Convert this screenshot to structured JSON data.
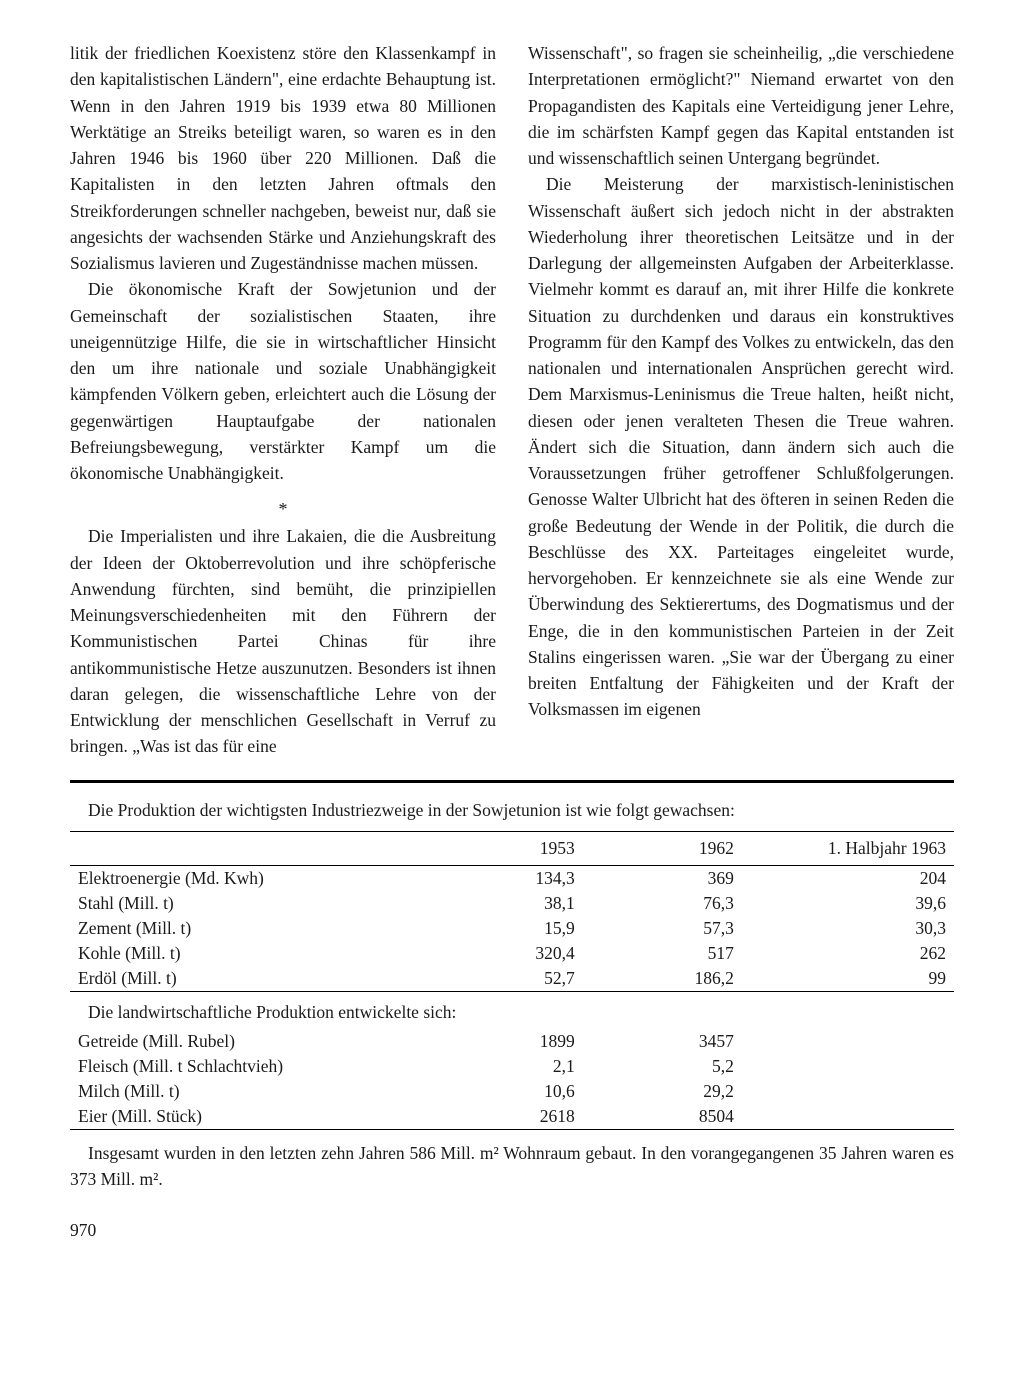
{
  "left_col": {
    "p1": "litik der friedlichen Koexistenz störe den Klassenkampf in den kapitalistischen Ländern\", eine erdachte Behauptung ist. Wenn in den Jahren 1919 bis 1939 etwa 80 Millionen Werktätige an Streiks beteiligt waren, so waren es in den Jahren 1946 bis 1960 über 220 Millionen. Daß die Kapitalisten in den letzten Jahren oftmals den Streikforderungen schneller nachgeben, beweist nur, daß sie angesichts der wachsenden Stärke und Anziehungskraft des Sozialismus lavieren und Zugeständnisse machen müssen.",
    "p2": "Die ökonomische Kraft der Sowjetunion und der Gemeinschaft der sozialistischen Staaten, ihre uneigennützige Hilfe, die sie in wirtschaftlicher Hinsicht den um ihre nationale und soziale Unabhängigkeit kämpfenden Völkern geben, erleichtert auch die Lösung der gegenwärtigen Hauptaufgabe der nationalen Befreiungsbewegung, verstärkter Kampf um die ökonomische Unabhängigkeit.",
    "sep": "*",
    "p3": "Die Imperialisten und ihre Lakaien, die die Ausbreitung der Ideen der Oktoberrevolution und ihre schöpferische Anwendung fürchten, sind bemüht, die prinzipiellen Meinungsverschiedenheiten mit den Führern der Kommunistischen Partei Chinas für ihre antikommunistische Hetze auszunutzen. Besonders ist ihnen daran gelegen, die wissenschaftliche Lehre von der Entwicklung der menschlichen Gesellschaft in Verruf zu bringen. „Was ist das für eine"
  },
  "right_col": {
    "p1": "Wissenschaft\", so fragen sie scheinheilig, „die verschiedene Interpretationen ermöglicht?\" Niemand erwartet von den Propagandisten des Kapitals eine Verteidigung jener Lehre, die im schärfsten Kampf gegen das Kapital entstanden ist und wissenschaftlich seinen Untergang begründet.",
    "p2": "Die Meisterung der marxistisch-leninistischen Wissenschaft äußert sich jedoch nicht in der abstrakten Wiederholung ihrer theoretischen Leitsätze und in der Darlegung der allgemeinsten Aufgaben der Arbeiterklasse. Vielmehr kommt es darauf an, mit ihrer Hilfe die konkrete Situation zu durchdenken und daraus ein konstruktives Programm für den Kampf des Volkes zu entwickeln, das den nationalen und internationalen Ansprüchen gerecht wird. Dem Marxismus-Leninismus die Treue halten, heißt nicht, diesen oder jenen veralteten Thesen die Treue wahren. Ändert sich die Situation, dann ändern sich auch die Voraussetzungen früher getroffener Schlußfolgerungen. Genosse Walter Ulbricht hat des öfteren in seinen Reden die große Bedeutung der Wende in der Politik, die durch die Beschlüsse des XX. Parteitages eingeleitet wurde, hervorgehoben. Er kennzeichnete sie als eine Wende zur Überwindung des Sektierertums, des Dogmatismus und der Enge, die in den kommunistischen Parteien in der Zeit Stalins eingerissen waren. „Sie war der Übergang zu einer breiten Entfaltung der Fähigkeiten und der Kraft der Volksmassen im eigenen"
  },
  "table_intro": "Die Produktion der wichtigsten Industriezweige in der Sowjetunion ist wie folgt gewachsen:",
  "table1": {
    "headers": [
      "",
      "1953",
      "1962",
      "1. Halbjahr 1963"
    ],
    "rows": [
      [
        "Elektroenergie (Md. Kwh)",
        "134,3",
        "369",
        "204"
      ],
      [
        "Stahl (Mill. t)",
        "38,1",
        "76,3",
        "39,6"
      ],
      [
        "Zement (Mill. t)",
        "15,9",
        "57,3",
        "30,3"
      ],
      [
        "Kohle (Mill. t)",
        "320,4",
        "517",
        "262"
      ],
      [
        "Erdöl (Mill. t)",
        "52,7",
        "186,2",
        "99"
      ]
    ]
  },
  "table2_caption": "Die landwirtschaftliche Produktion entwickelte sich:",
  "table2": {
    "rows": [
      [
        "Getreide (Mill. Rubel)",
        "1899",
        "3457",
        ""
      ],
      [
        "Fleisch (Mill. t Schlachtvieh)",
        "2,1",
        "5,2",
        ""
      ],
      [
        "Milch (Mill. t)",
        "10,6",
        "29,2",
        ""
      ],
      [
        "Eier (Mill. Stück)",
        "2618",
        "8504",
        ""
      ]
    ]
  },
  "footer_note": "Insgesamt wurden in den letzten zehn Jahren 586 Mill. m² Wohnraum gebaut. In den vorangegangenen 35 Jahren waren es 373 Mill. m².",
  "page_num": "970"
}
